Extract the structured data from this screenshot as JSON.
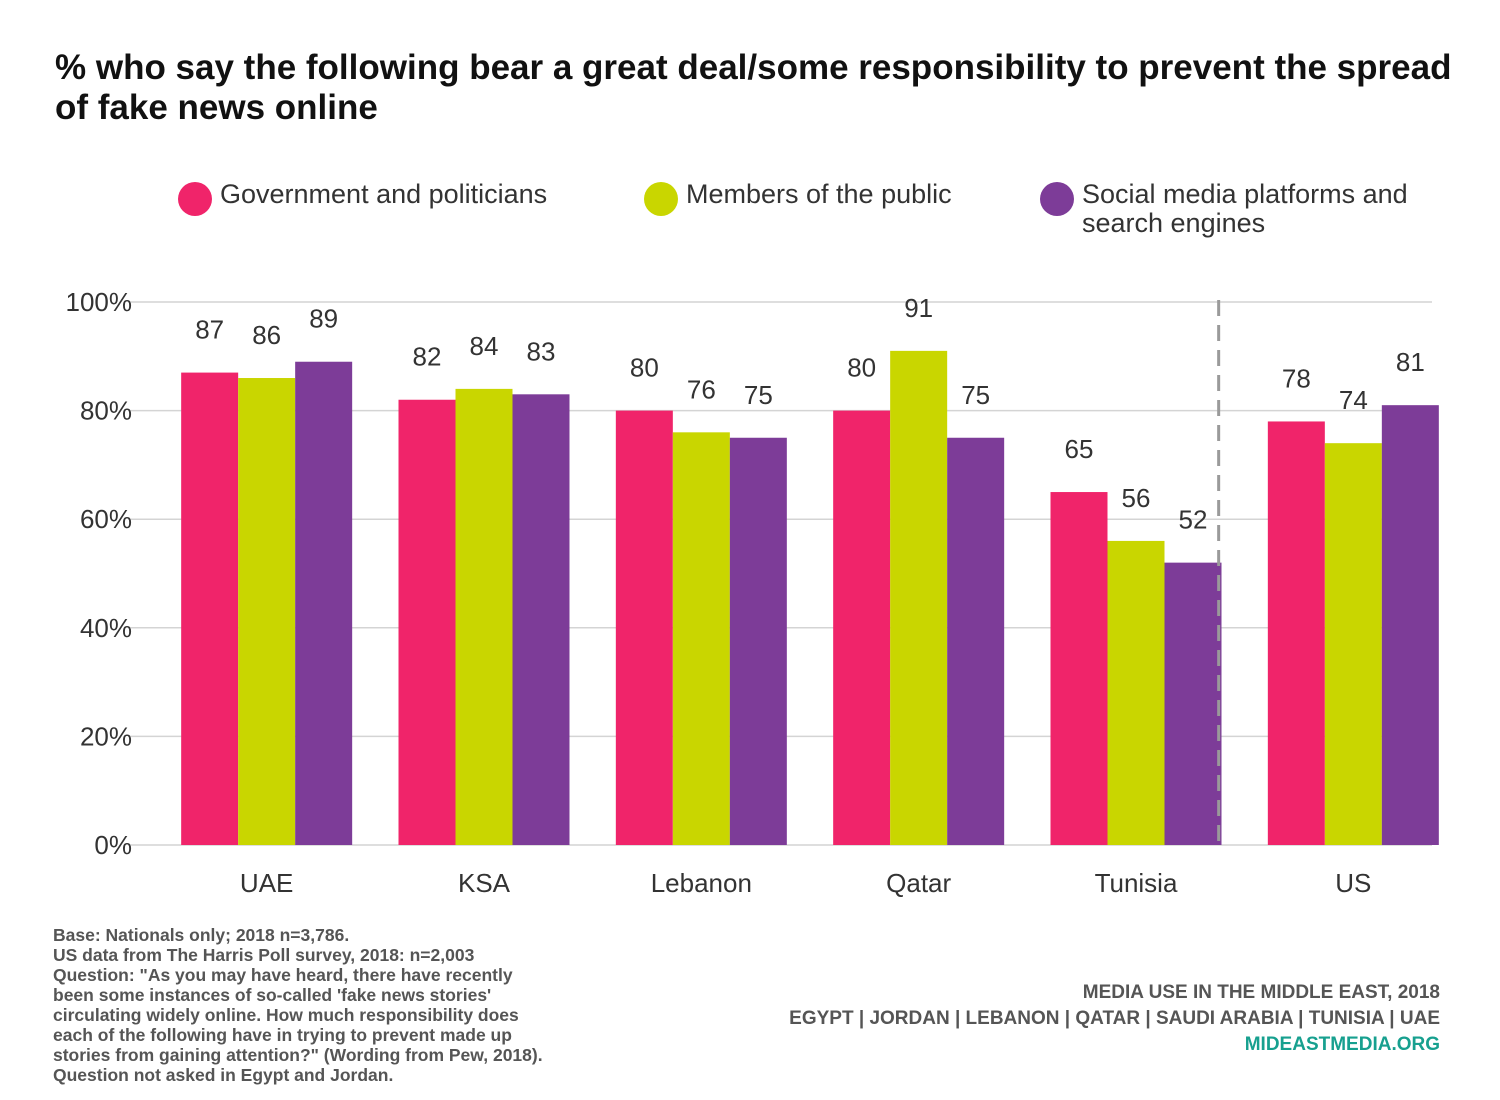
{
  "chart_data": {
    "type": "bar",
    "title": "% who say the following bear a great deal/some responsibility to prevent the spread of fake news online",
    "categories": [
      "UAE",
      "KSA",
      "Lebanon",
      "Qatar",
      "Tunisia",
      "US"
    ],
    "series": [
      {
        "name": "Government and politicians",
        "color": "#f0246a",
        "values": [
          87,
          82,
          80,
          80,
          65,
          78
        ]
      },
      {
        "name": "Members of the public",
        "color": "#c9d600",
        "values": [
          86,
          84,
          76,
          91,
          56,
          74
        ]
      },
      {
        "name": "Social media platforms and search engines",
        "color": "#7d3c98",
        "values": [
          89,
          83,
          75,
          75,
          52,
          81
        ]
      }
    ],
    "ylim": [
      0,
      100
    ],
    "yticks": [
      "0%",
      "20%",
      "40%",
      "60%",
      "80%",
      "100%"
    ],
    "ytick_values": [
      0,
      20,
      40,
      60,
      80,
      100
    ],
    "grid": true,
    "legend_position": "top",
    "data_labels": true,
    "separator": "dashed vertical line between Tunisia and US",
    "xlabel": "",
    "ylabel": ""
  },
  "notes": [
    "Base: Nationals only; 2018 n=3,786.",
    "US data from The Harris Poll survey, 2018: n=2,003",
    "Question: \"As you may have heard, there have recently",
    "been some instances of so-called 'fake news stories'",
    "circulating widely online. How much responsibility does",
    "each of the following have in trying to prevent made up",
    "stories from gaining attention?\" (Wording from Pew, 2018).",
    "Question not asked in Egypt and Jordan."
  ],
  "source": {
    "line1": "MEDIA USE IN THE MIDDLE EAST, 2018",
    "line2": "EGYPT | JORDAN | LEBANON | QATAR | SAUDI ARABIA | TUNISIA | UAE",
    "site": "MIDEASTMEDIA.ORG"
  }
}
